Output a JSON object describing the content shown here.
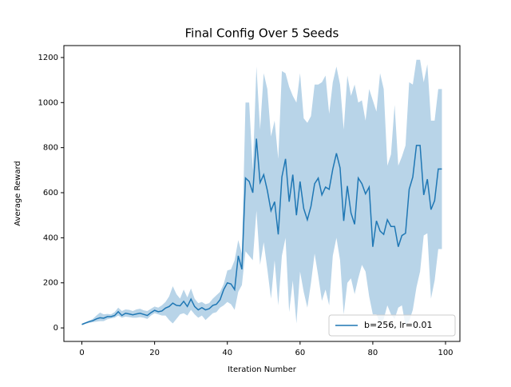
{
  "chart_data": {
    "type": "line",
    "title": "Final Config Over 5 Seeds",
    "xlabel": "Iteration Number",
    "ylabel": "Average Reward",
    "x": [
      0,
      1,
      2,
      3,
      4,
      5,
      6,
      7,
      8,
      9,
      10,
      11,
      12,
      13,
      14,
      15,
      16,
      17,
      18,
      19,
      20,
      21,
      22,
      23,
      24,
      25,
      26,
      27,
      28,
      29,
      30,
      31,
      32,
      33,
      34,
      35,
      36,
      37,
      38,
      39,
      40,
      41,
      42,
      43,
      44,
      45,
      46,
      47,
      48,
      49,
      50,
      51,
      52,
      53,
      54,
      55,
      56,
      57,
      58,
      59,
      60,
      61,
      62,
      63,
      64,
      65,
      66,
      67,
      68,
      69,
      70,
      71,
      72,
      73,
      74,
      75,
      76,
      77,
      78,
      79,
      80,
      81,
      82,
      83,
      84,
      85,
      86,
      87,
      88,
      89,
      90,
      91,
      92,
      93,
      94,
      95,
      96,
      97,
      98,
      99
    ],
    "series": [
      {
        "name": "b=256, lr=0.01",
        "color": "#1f77b4",
        "band_color": "#b8d4e8",
        "values": [
          15,
          22,
          28,
          32,
          40,
          45,
          43,
          50,
          50,
          55,
          72,
          55,
          65,
          62,
          58,
          62,
          65,
          60,
          55,
          68,
          78,
          72,
          75,
          88,
          95,
          110,
          100,
          98,
          118,
          95,
          128,
          95,
          80,
          90,
          80,
          85,
          100,
          105,
          125,
          170,
          200,
          195,
          170,
          320,
          260,
          665,
          650,
          600,
          840,
          645,
          680,
          610,
          520,
          560,
          415,
          670,
          750,
          560,
          680,
          500,
          650,
          530,
          480,
          540,
          640,
          665,
          590,
          625,
          615,
          705,
          775,
          710,
          475,
          630,
          510,
          460,
          665,
          640,
          595,
          625,
          360,
          475,
          430,
          415,
          480,
          450,
          450,
          360,
          410,
          420,
          615,
          670,
          810,
          810,
          590,
          660,
          525,
          565,
          705,
          705
        ],
        "upper": [
          20,
          25,
          32,
          40,
          55,
          68,
          60,
          62,
          60,
          70,
          90,
          75,
          82,
          80,
          75,
          82,
          85,
          78,
          75,
          85,
          95,
          90,
          100,
          115,
          140,
          185,
          150,
          130,
          170,
          135,
          175,
          130,
          110,
          115,
          105,
          110,
          130,
          145,
          160,
          195,
          255,
          260,
          300,
          390,
          330,
          1000,
          1000,
          700,
          1160,
          880,
          1130,
          1060,
          850,
          920,
          750,
          1140,
          1130,
          1070,
          1030,
          1000,
          1130,
          930,
          910,
          940,
          1080,
          1080,
          1090,
          1120,
          950,
          1090,
          1160,
          1080,
          880,
          1120,
          1030,
          1080,
          1000,
          1010,
          920,
          1060,
          1010,
          960,
          1130,
          1060,
          720,
          770,
          990,
          720,
          760,
          810,
          1090,
          1080,
          1190,
          1190,
          1090,
          1170,
          920,
          920,
          1060,
          1060
        ],
        "lower": [
          12,
          18,
          22,
          25,
          28,
          30,
          30,
          38,
          42,
          45,
          55,
          45,
          50,
          48,
          45,
          45,
          48,
          45,
          40,
          55,
          65,
          60,
          55,
          55,
          35,
          20,
          40,
          60,
          65,
          55,
          80,
          60,
          45,
          55,
          35,
          50,
          65,
          70,
          90,
          100,
          115,
          105,
          80,
          160,
          190,
          340,
          320,
          300,
          520,
          280,
          380,
          260,
          130,
          300,
          100,
          320,
          400,
          70,
          210,
          20,
          250,
          160,
          90,
          200,
          330,
          230,
          120,
          170,
          100,
          320,
          400,
          300,
          60,
          200,
          220,
          150,
          220,
          280,
          250,
          140,
          60,
          60,
          20,
          40,
          100,
          60,
          40,
          90,
          100,
          10,
          30,
          80,
          180,
          250,
          410,
          420,
          130,
          210,
          350,
          350
        ]
      }
    ],
    "xlim": [
      -4.95,
      103.95
    ],
    "ylim": [
      -60,
      1253
    ],
    "xticks": [
      0,
      20,
      40,
      60,
      80,
      100
    ],
    "yticks": [
      0,
      200,
      400,
      600,
      800,
      1000,
      1200
    ],
    "legend": "lower right",
    "grid": false
  }
}
